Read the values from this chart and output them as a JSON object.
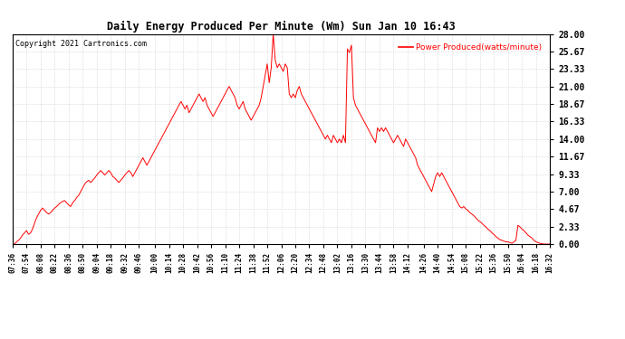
{
  "title": "Daily Energy Produced Per Minute (Wm) Sun Jan 10 16:43",
  "copyright": "Copyright 2021 Cartronics.com",
  "legend_label": "Power Produced(watts/minute)",
  "line_color": "red",
  "background_color": "#ffffff",
  "grid_color": "#c8c8c8",
  "ylim": [
    0,
    28.0
  ],
  "yticks": [
    0.0,
    2.33,
    4.67,
    7.0,
    9.33,
    11.67,
    14.0,
    16.33,
    18.67,
    21.0,
    23.33,
    25.67,
    28.0
  ],
  "xtick_labels": [
    "07:36",
    "07:54",
    "08:08",
    "08:22",
    "08:36",
    "08:50",
    "09:04",
    "09:18",
    "09:32",
    "09:46",
    "10:00",
    "10:14",
    "10:28",
    "10:42",
    "10:56",
    "11:10",
    "11:24",
    "11:38",
    "11:52",
    "12:06",
    "12:20",
    "12:34",
    "12:48",
    "13:02",
    "13:16",
    "13:30",
    "13:44",
    "13:58",
    "14:12",
    "14:26",
    "14:40",
    "14:54",
    "15:08",
    "15:22",
    "15:36",
    "15:50",
    "16:04",
    "16:18",
    "16:32"
  ],
  "values": [
    0.0,
    0.0,
    0.3,
    0.5,
    0.8,
    1.2,
    1.5,
    1.8,
    1.3,
    1.5,
    2.0,
    2.8,
    3.5,
    4.0,
    4.5,
    4.8,
    4.5,
    4.2,
    4.0,
    4.2,
    4.5,
    4.8,
    5.0,
    5.3,
    5.5,
    5.7,
    5.8,
    5.5,
    5.2,
    5.0,
    5.5,
    5.8,
    6.2,
    6.5,
    7.0,
    7.5,
    8.0,
    8.3,
    8.5,
    8.2,
    8.5,
    8.8,
    9.2,
    9.5,
    9.8,
    9.5,
    9.2,
    9.5,
    9.8,
    9.5,
    9.0,
    8.8,
    8.5,
    8.2,
    8.5,
    8.8,
    9.2,
    9.5,
    9.8,
    9.5,
    9.0,
    9.5,
    10.0,
    10.5,
    11.0,
    11.5,
    11.0,
    10.5,
    11.0,
    11.5,
    12.0,
    12.5,
    13.0,
    13.5,
    14.0,
    14.5,
    15.0,
    15.5,
    16.0,
    16.5,
    17.0,
    17.5,
    18.0,
    18.5,
    19.0,
    18.5,
    18.0,
    18.5,
    17.5,
    18.0,
    18.5,
    19.0,
    19.5,
    20.0,
    19.5,
    19.0,
    19.5,
    18.5,
    18.0,
    17.5,
    17.0,
    17.5,
    18.0,
    18.5,
    19.0,
    19.5,
    20.0,
    20.5,
    21.0,
    20.5,
    20.0,
    19.5,
    18.5,
    18.0,
    18.5,
    19.0,
    18.0,
    17.5,
    17.0,
    16.5,
    17.0,
    17.5,
    18.0,
    18.5,
    19.5,
    21.0,
    22.5,
    24.0,
    21.5,
    23.5,
    28.0,
    24.5,
    23.5,
    24.0,
    23.5,
    23.0,
    24.0,
    23.5,
    20.0,
    19.5,
    20.0,
    19.5,
    20.5,
    21.0,
    20.0,
    19.5,
    19.0,
    18.5,
    18.0,
    17.5,
    17.0,
    16.5,
    16.0,
    15.5,
    15.0,
    14.5,
    14.0,
    14.5,
    14.0,
    13.5,
    14.5,
    14.0,
    13.5,
    14.0,
    13.5,
    14.5,
    13.5,
    26.0,
    25.5,
    26.5,
    19.5,
    18.5,
    18.0,
    17.5,
    17.0,
    16.5,
    16.0,
    15.5,
    15.0,
    14.5,
    14.0,
    13.5,
    15.5,
    15.0,
    15.5,
    15.0,
    15.5,
    15.0,
    14.5,
    14.0,
    13.5,
    14.0,
    14.5,
    14.0,
    13.5,
    13.0,
    14.0,
    13.5,
    13.0,
    12.5,
    12.0,
    11.5,
    10.5,
    10.0,
    9.5,
    9.0,
    8.5,
    8.0,
    7.5,
    7.0,
    8.0,
    9.0,
    9.5,
    9.0,
    9.5,
    9.0,
    8.5,
    8.0,
    7.5,
    7.0,
    6.5,
    6.0,
    5.5,
    5.0,
    4.8,
    5.0,
    4.7,
    4.5,
    4.2,
    4.0,
    3.8,
    3.5,
    3.2,
    3.0,
    2.8,
    2.5,
    2.3,
    2.0,
    1.8,
    1.5,
    1.3,
    1.0,
    0.8,
    0.6,
    0.5,
    0.4,
    0.3,
    0.3,
    0.2,
    0.1,
    0.3,
    0.5,
    2.5,
    2.3,
    2.0,
    1.8,
    1.5,
    1.2,
    1.0,
    0.8,
    0.5,
    0.3,
    0.2,
    0.1,
    0.05,
    0.0,
    0.0,
    0.0,
    0.0
  ]
}
